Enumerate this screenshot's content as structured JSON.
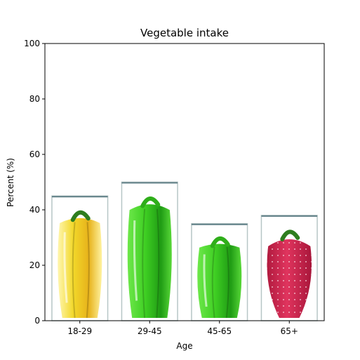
{
  "chart_data": {
    "type": "bar",
    "title": "Vegetable intake",
    "xlabel": "Age",
    "ylabel": "Percent (%)",
    "categories": [
      "18-29",
      "29-45",
      "45-65",
      "65+"
    ],
    "values": [
      45,
      50,
      35,
      38
    ],
    "ylim": [
      0,
      100
    ],
    "yticks": [
      0,
      20,
      40,
      60,
      80,
      100
    ],
    "grid": false,
    "bar_fill": [
      "yellow-pepper",
      "green-pepper",
      "green-pepper",
      "strawberry"
    ],
    "colors": {
      "yellow-pepper": "#f2d82a",
      "green-pepper": "#3fcf23",
      "strawberry": "#d42a52",
      "stem": "#2e7d1e"
    }
  }
}
